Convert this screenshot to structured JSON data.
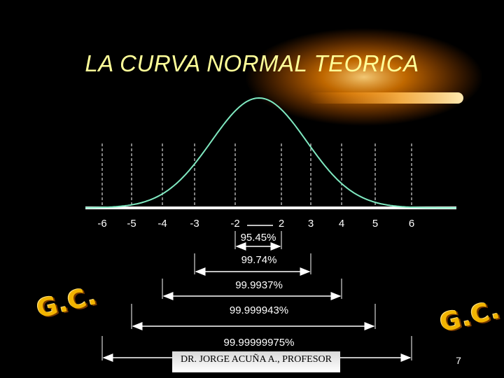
{
  "title": "LA CURVA NORMAL TEORICA",
  "axis_ticks": [
    "-6",
    "-5",
    "-4",
    "-3",
    "-2",
    "2",
    "3",
    "4",
    "5",
    "6"
  ],
  "ranges": [
    {
      "from": "-2",
      "to": "2",
      "label": "95.45%"
    },
    {
      "from": "-3",
      "to": "3",
      "label": "99.74%"
    },
    {
      "from": "-4",
      "to": "4",
      "label": "99.9937%"
    },
    {
      "from": "-5",
      "to": "5",
      "label": "99.999943%"
    },
    {
      "from": "-6",
      "to": "6",
      "label": "99.99999975%"
    }
  ],
  "stamp_left": "G.C.",
  "stamp_right": "G.C.",
  "footer": "DR.  JORGE ACUÑA A., PROFESOR",
  "page_number": "7",
  "colors": {
    "background": "#000000",
    "title": "#ffff99",
    "curve": "#7fe8c0",
    "lines": "#ffffff",
    "glow": "#ff8a00",
    "stamp": "#f2b400"
  }
}
